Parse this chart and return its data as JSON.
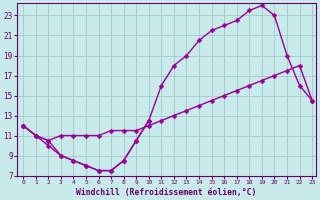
{
  "xlabel": "Windchill (Refroidissement éolien,°C)",
  "bg_color": "#c8eaea",
  "grid_color": "#aacccc",
  "line_color": "#990099",
  "xlim_min": -0.5,
  "xlim_max": 23.3,
  "ylim_min": 7,
  "ylim_max": 24.2,
  "xticks": [
    0,
    1,
    2,
    3,
    4,
    5,
    6,
    7,
    8,
    9,
    10,
    11,
    12,
    13,
    14,
    15,
    16,
    17,
    18,
    19,
    20,
    21,
    22,
    23
  ],
  "yticks": [
    7,
    9,
    11,
    13,
    15,
    17,
    19,
    21,
    23
  ],
  "curve1_x": [
    0,
    1,
    2,
    3,
    4,
    5,
    6,
    7,
    8,
    9,
    10,
    11,
    12,
    13,
    14,
    15,
    16,
    17,
    18,
    19,
    20,
    21,
    22,
    23
  ],
  "curve1_y": [
    12,
    11,
    10.5,
    9,
    8.5,
    8,
    7.5,
    7.5,
    8.5,
    10.5,
    12.5,
    16,
    18,
    19,
    20.5,
    21.5,
    22,
    22.5,
    23.5,
    24,
    23,
    19,
    16,
    14.5
  ],
  "curve2_x": [
    0,
    1,
    2,
    3,
    4,
    5,
    6,
    7,
    8,
    9,
    10,
    11,
    12,
    13,
    14,
    15,
    16,
    17,
    18,
    19,
    20,
    21,
    22,
    23
  ],
  "curve2_y": [
    12,
    11,
    10.5,
    11,
    11,
    11,
    11,
    11.5,
    11.5,
    11.5,
    12,
    12.5,
    13,
    13.5,
    14,
    14.5,
    15,
    15.5,
    16,
    16.5,
    17,
    17.5,
    18,
    14.5
  ],
  "curve3_x": [
    0,
    1,
    2,
    3,
    4,
    5,
    6,
    7,
    8,
    9,
    10
  ],
  "curve3_y": [
    12,
    11,
    10,
    9,
    8.5,
    8,
    7.5,
    7.5,
    8.5,
    10.5,
    12.5
  ],
  "markersize": 2.5,
  "linewidth": 1.0
}
